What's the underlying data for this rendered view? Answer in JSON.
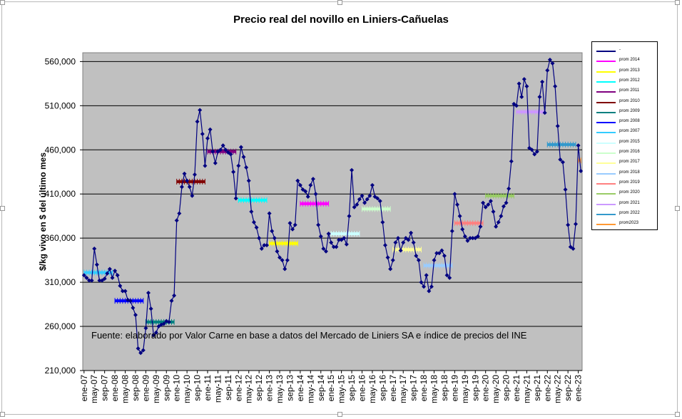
{
  "chart_data": {
    "type": "line",
    "title": "Precio real del novillo en Liniers-Cañuelas",
    "ylabel": "$/kg vivo en $ del último mes",
    "xlabel": "",
    "ylim": [
      210000,
      570000
    ],
    "yticks": [
      "210,000",
      "260,000",
      "310,000",
      "360,000",
      "410,000",
      "460,000",
      "510,000",
      "560,000"
    ],
    "ytick_values": [
      210000,
      260000,
      310000,
      360000,
      410000,
      460000,
      510000,
      560000
    ],
    "xticks": [
      "ene-07",
      "may-07",
      "sep-07",
      "ene-08",
      "may-08",
      "sep-08",
      "ene-09",
      "may-09",
      "sep-09",
      "ene-10",
      "may-10",
      "sep-10",
      "ene-11",
      "may-11",
      "sep-11",
      "ene-12",
      "may-12",
      "sep-12",
      "ene-13",
      "may-13",
      "sep-13",
      "ene-14",
      "may-14",
      "sep-14",
      "ene-15",
      "may-15",
      "sep-15",
      "ene-16",
      "may-16",
      "sep-16",
      "ene-17",
      "may-17",
      "sep-17",
      "ene-18",
      "may-18",
      "sep-18",
      "ene-19",
      "may-19",
      "sep-19",
      "ene-20",
      "may-20",
      "sep-20",
      "ene-21",
      "may-21",
      "sep-21",
      "ene-22",
      "may-22",
      "sep-22",
      "ene-23"
    ],
    "grid": true,
    "legend_position": "right",
    "series": [
      {
        "name": "-",
        "color": "#000080",
        "start": "ene-07",
        "values": [
          318,
          315,
          312,
          312,
          348,
          330,
          312,
          312,
          314,
          320,
          325,
          315,
          323,
          318,
          306,
          300,
          300,
          290,
          289,
          281,
          273,
          235,
          230,
          233,
          258,
          298,
          280,
          250,
          253,
          260,
          262,
          263,
          266,
          265,
          289,
          295,
          380,
          388,
          418,
          433,
          425,
          418,
          408,
          432,
          492,
          505,
          478,
          442,
          473,
          483,
          458,
          445,
          458,
          460,
          465,
          460,
          457,
          455,
          435,
          405,
          442,
          463,
          452,
          440,
          425,
          390,
          378,
          372,
          360,
          348,
          352,
          352,
          388,
          368,
          360,
          345,
          338,
          335,
          325,
          335,
          377,
          370,
          375,
          425,
          420,
          415,
          413,
          407,
          420,
          427,
          410,
          375,
          362,
          348,
          345,
          365,
          355,
          350,
          350,
          358,
          358,
          360,
          353,
          385,
          437,
          395,
          398,
          404,
          408,
          400,
          404,
          408,
          420,
          407,
          405,
          402,
          378,
          352,
          338,
          325,
          335,
          355,
          360,
          346,
          355,
          360,
          358,
          366,
          355,
          340,
          335,
          310,
          305,
          318,
          300,
          305,
          335,
          343,
          343,
          346,
          340,
          318,
          315,
          368,
          410,
          398,
          385,
          370,
          362,
          357,
          360,
          360,
          360,
          362,
          373,
          400,
          395,
          398,
          402,
          390,
          373,
          378,
          385,
          396,
          400,
          416,
          447,
          512,
          510,
          535,
          520,
          540,
          532,
          462,
          460,
          455,
          458,
          520,
          537,
          502,
          550,
          562,
          558,
          532,
          487,
          449,
          446,
          415,
          375,
          350,
          348,
          376,
          465,
          436
        ]
      },
      {
        "name": "prom 2014",
        "color": "#ff00ff",
        "from": "ene-14",
        "to": "dic-14",
        "value": 399
      },
      {
        "name": "prom 2013",
        "color": "#ffff00",
        "from": "ene-13",
        "to": "dic-13",
        "value": 354
      },
      {
        "name": "prom 2012",
        "color": "#00ffff",
        "from": "ene-12",
        "to": "dic-12",
        "value": 403
      },
      {
        "name": "prom 2011",
        "color": "#800080",
        "from": "ene-11",
        "to": "dic-11",
        "value": 458
      },
      {
        "name": "prom 2010",
        "color": "#800000",
        "from": "ene-10",
        "to": "dic-10",
        "value": 424
      },
      {
        "name": "prom 2009",
        "color": "#008080",
        "from": "ene-09",
        "to": "dic-09",
        "value": 265
      },
      {
        "name": "prom 2008",
        "color": "#0000ff",
        "from": "ene-08",
        "to": "dic-08",
        "value": 289
      },
      {
        "name": "prom 2007",
        "color": "#33ccff",
        "from": "ene-07",
        "to": "dic-07",
        "value": 321
      },
      {
        "name": "prom 2015",
        "color": "#ccffff",
        "from": "ene-15",
        "to": "dic-15",
        "value": 365
      },
      {
        "name": "prom 2016",
        "color": "#ccffcc",
        "from": "ene-16",
        "to": "dic-16",
        "value": 393
      },
      {
        "name": "prom 2017",
        "color": "#ffff99",
        "from": "ene-17",
        "to": "dic-17",
        "value": 347
      },
      {
        "name": "prom 2018",
        "color": "#99ccff",
        "from": "ene-18",
        "to": "dic-18",
        "value": 329
      },
      {
        "name": "prom 2019",
        "color": "#ff8080",
        "from": "ene-19",
        "to": "dic-19",
        "value": 377
      },
      {
        "name": "prom 2020",
        "color": "#99cc66",
        "from": "ene-20",
        "to": "dic-20",
        "value": 408
      },
      {
        "name": "prom 2021",
        "color": "#cc99ff",
        "from": "ene-21",
        "to": "dic-21",
        "value": 503
      },
      {
        "name": "prom 2022",
        "color": "#3399cc",
        "from": "ene-22",
        "to": "dic-22",
        "value": 466
      },
      {
        "name": "prom2023",
        "color": "#ff9933",
        "from": "ene-23",
        "to": "feb-23",
        "value": 448
      }
    ],
    "annotation": "Fuente: elaborado por Valor Carne en base a datos del Mercado de Liniers SA e índice de precios del INE"
  },
  "colors": {
    "plot_background": "#c0c0c0",
    "gridline": "#000000",
    "main_line": "#000080"
  }
}
